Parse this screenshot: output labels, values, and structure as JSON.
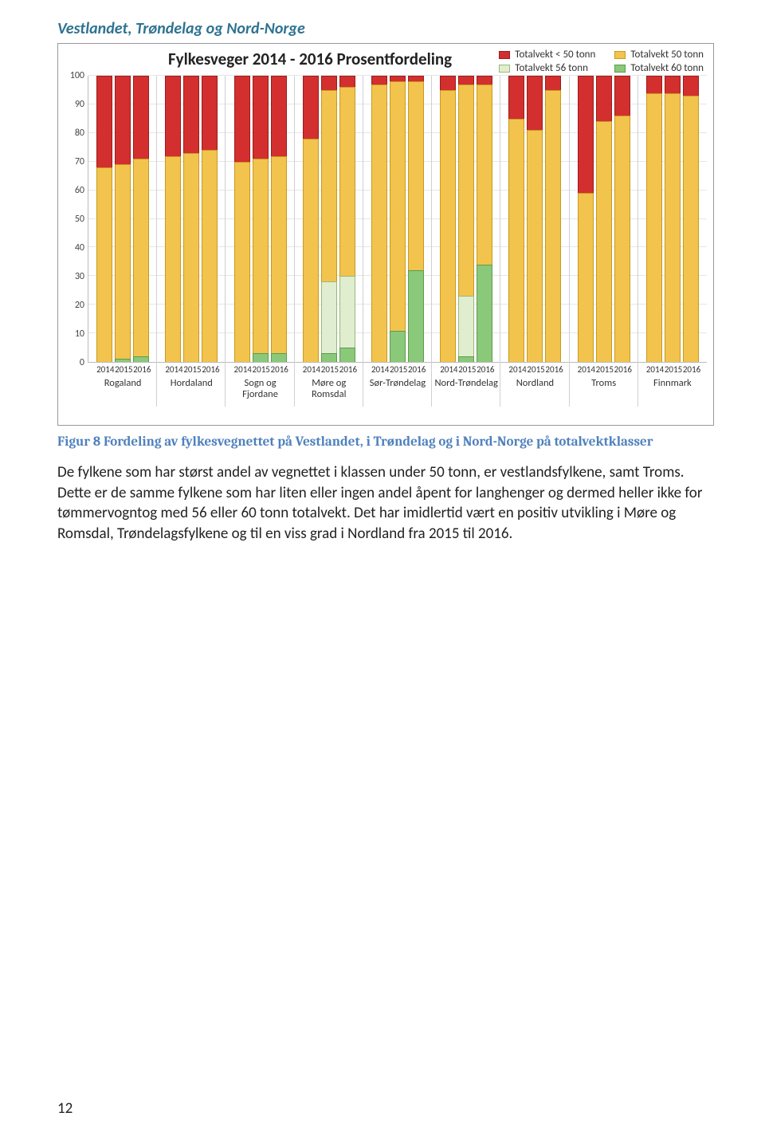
{
  "section_heading": "Vestlandet, Trøndelag og Nord-Norge",
  "chart": {
    "type": "stacked-bar",
    "title": "Fylkesveger 2014 - 2016 Prosentfordeling",
    "legend": [
      {
        "label": "Totalvekt < 50 tonn",
        "color": "#d32f2f",
        "border": "#9a1c1c"
      },
      {
        "label": "Totalvekt 50 tonn",
        "color": "#f2c44e",
        "border": "#c79a1f"
      },
      {
        "label": "Totalvekt 56 tonn",
        "color": "#e0eecf",
        "border": "#9ab77a"
      },
      {
        "label": "Totalvekt 60 tonn",
        "color": "#8bc97a",
        "border": "#5e9a4d"
      }
    ],
    "y": {
      "min": 0,
      "max": 100,
      "step": 10
    },
    "years": [
      "2014",
      "2015",
      "2016"
    ],
    "regions": [
      {
        "name": "Rogaland",
        "bars": [
          {
            "lt50": 32,
            "t50": 68,
            "t56": 0,
            "t60": 0
          },
          {
            "lt50": 31,
            "t50": 68,
            "t56": 0,
            "t60": 1
          },
          {
            "lt50": 29,
            "t50": 69,
            "t56": 0,
            "t60": 2
          }
        ]
      },
      {
        "name": "Hordaland",
        "bars": [
          {
            "lt50": 28,
            "t50": 72,
            "t56": 0,
            "t60": 0
          },
          {
            "lt50": 27,
            "t50": 73,
            "t56": 0,
            "t60": 0
          },
          {
            "lt50": 26,
            "t50": 74,
            "t56": 0,
            "t60": 0
          }
        ]
      },
      {
        "name": "Sogn og Fjordane",
        "bars": [
          {
            "lt50": 30,
            "t50": 70,
            "t56": 0,
            "t60": 0
          },
          {
            "lt50": 29,
            "t50": 68,
            "t56": 0,
            "t60": 3
          },
          {
            "lt50": 28,
            "t50": 69,
            "t56": 0,
            "t60": 3
          }
        ]
      },
      {
        "name": "Møre og Romsdal",
        "bars": [
          {
            "lt50": 22,
            "t50": 78,
            "t56": 0,
            "t60": 0
          },
          {
            "lt50": 5,
            "t50": 67,
            "t56": 25,
            "t60": 3
          },
          {
            "lt50": 4,
            "t50": 66,
            "t56": 25,
            "t60": 5
          }
        ]
      },
      {
        "name": "Sør-Trøndelag",
        "bars": [
          {
            "lt50": 3,
            "t50": 97,
            "t56": 0,
            "t60": 0
          },
          {
            "lt50": 2,
            "t50": 87,
            "t56": 0,
            "t60": 11
          },
          {
            "lt50": 2,
            "t50": 66,
            "t56": 0,
            "t60": 32
          }
        ]
      },
      {
        "name": "Nord-Trøndelag",
        "bars": [
          {
            "lt50": 5,
            "t50": 95,
            "t56": 0,
            "t60": 0
          },
          {
            "lt50": 3,
            "t50": 74,
            "t56": 21,
            "t60": 2
          },
          {
            "lt50": 3,
            "t50": 63,
            "t56": 0,
            "t60": 34
          }
        ]
      },
      {
        "name": "Nordland",
        "bars": [
          {
            "lt50": 15,
            "t50": 85,
            "t56": 0,
            "t60": 0
          },
          {
            "lt50": 19,
            "t50": 81,
            "t56": 0,
            "t60": 0
          },
          {
            "lt50": 5,
            "t50": 95,
            "t56": 0,
            "t60": 0
          }
        ]
      },
      {
        "name": "Troms",
        "bars": [
          {
            "lt50": 41,
            "t50": 59,
            "t56": 0,
            "t60": 0
          },
          {
            "lt50": 16,
            "t50": 84,
            "t56": 0,
            "t60": 0
          },
          {
            "lt50": 14,
            "t50": 86,
            "t56": 0,
            "t60": 0
          }
        ]
      },
      {
        "name": "Finnmark",
        "bars": [
          {
            "lt50": 6,
            "t50": 94,
            "t56": 0,
            "t60": 0
          },
          {
            "lt50": 6,
            "t50": 94,
            "t56": 0,
            "t60": 0
          },
          {
            "lt50": 7,
            "t50": 93,
            "t56": 0,
            "t60": 0
          }
        ]
      }
    ],
    "colors": {
      "lt50": "#d32f2f",
      "t50": "#f2c44e",
      "t56": "#e0eecf",
      "t60": "#8bc97a"
    },
    "borders": {
      "lt50": "#9a1c1c",
      "t50": "#c79a1f",
      "t56": "#9ab77a",
      "t60": "#5e9a4d"
    }
  },
  "figure_caption": "Figur 8 Fordeling av fylkesvegnettet på Vestlandet, i Trøndelag og i Nord-Norge på totalvektklasser",
  "body_text": "De fylkene som har størst andel av vegnettet i klassen under 50 tonn, er vestlandsfylkene, samt Troms. Dette er de samme fylkene som har liten eller ingen andel åpent for langhenger og dermed heller ikke for tømmervogntog med 56 eller 60 tonn totalvekt. Det har imidlertid vært en positiv utvikling i Møre og Romsdal, Trøndelagsfylkene og til en viss grad i Nordland fra 2015 til 2016.",
  "page_number": "12"
}
